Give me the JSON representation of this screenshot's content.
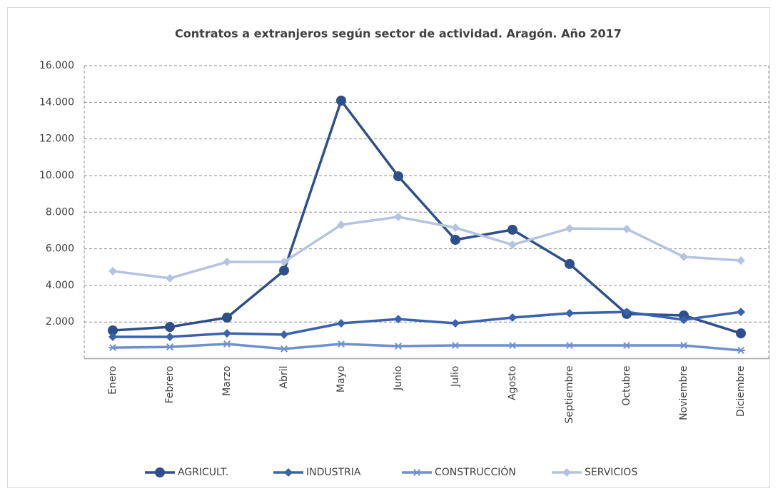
{
  "chart_data": {
    "type": "line",
    "title": "Contratos a extranjeros según sector de actividad. Aragón. Año 2017",
    "categories": [
      "Enero",
      "Febrero",
      "Marzo",
      "Abril",
      "Mayo",
      "Junio",
      "Julio",
      "Agosto",
      "Septiembre",
      "Octubre",
      "Noviembre",
      "Diciembre"
    ],
    "series": [
      {
        "name": "AGRICULT.",
        "color": "#2e4f8a",
        "marker": "circle",
        "values": [
          1540,
          1730,
          2240,
          4810,
          14090,
          9960,
          6490,
          7040,
          5170,
          2440,
          2360,
          1380
        ]
      },
      {
        "name": "INDUSTRIA",
        "color": "#3a62ad",
        "marker": "diamond",
        "values": [
          1190,
          1190,
          1380,
          1310,
          1930,
          2160,
          1930,
          2240,
          2480,
          2550,
          2120,
          2550
        ]
      },
      {
        "name": "CONSTRUCCIÓN",
        "color": "#6f8fcf",
        "marker": "star",
        "values": [
          600,
          640,
          800,
          530,
          800,
          680,
          720,
          720,
          720,
          720,
          720,
          450
        ]
      },
      {
        "name": "SERVICIOS",
        "color": "#b4c3e0",
        "marker": "diamond",
        "values": [
          4780,
          4390,
          5280,
          5280,
          7310,
          7740,
          7150,
          6220,
          7110,
          7080,
          5560,
          5360
        ]
      }
    ],
    "ylim": [
      0,
      16000
    ],
    "yticks": [
      {
        "value": 2000,
        "label": "2.000"
      },
      {
        "value": 4000,
        "label": "4.000"
      },
      {
        "value": 6000,
        "label": "6.000"
      },
      {
        "value": 8000,
        "label": "8.000"
      },
      {
        "value": 10000,
        "label": "10.000"
      },
      {
        "value": 12000,
        "label": "12.000"
      },
      {
        "value": 14000,
        "label": "14.000"
      },
      {
        "value": 16000,
        "label": "16.000"
      }
    ],
    "grid": true,
    "legend": "bottom"
  }
}
